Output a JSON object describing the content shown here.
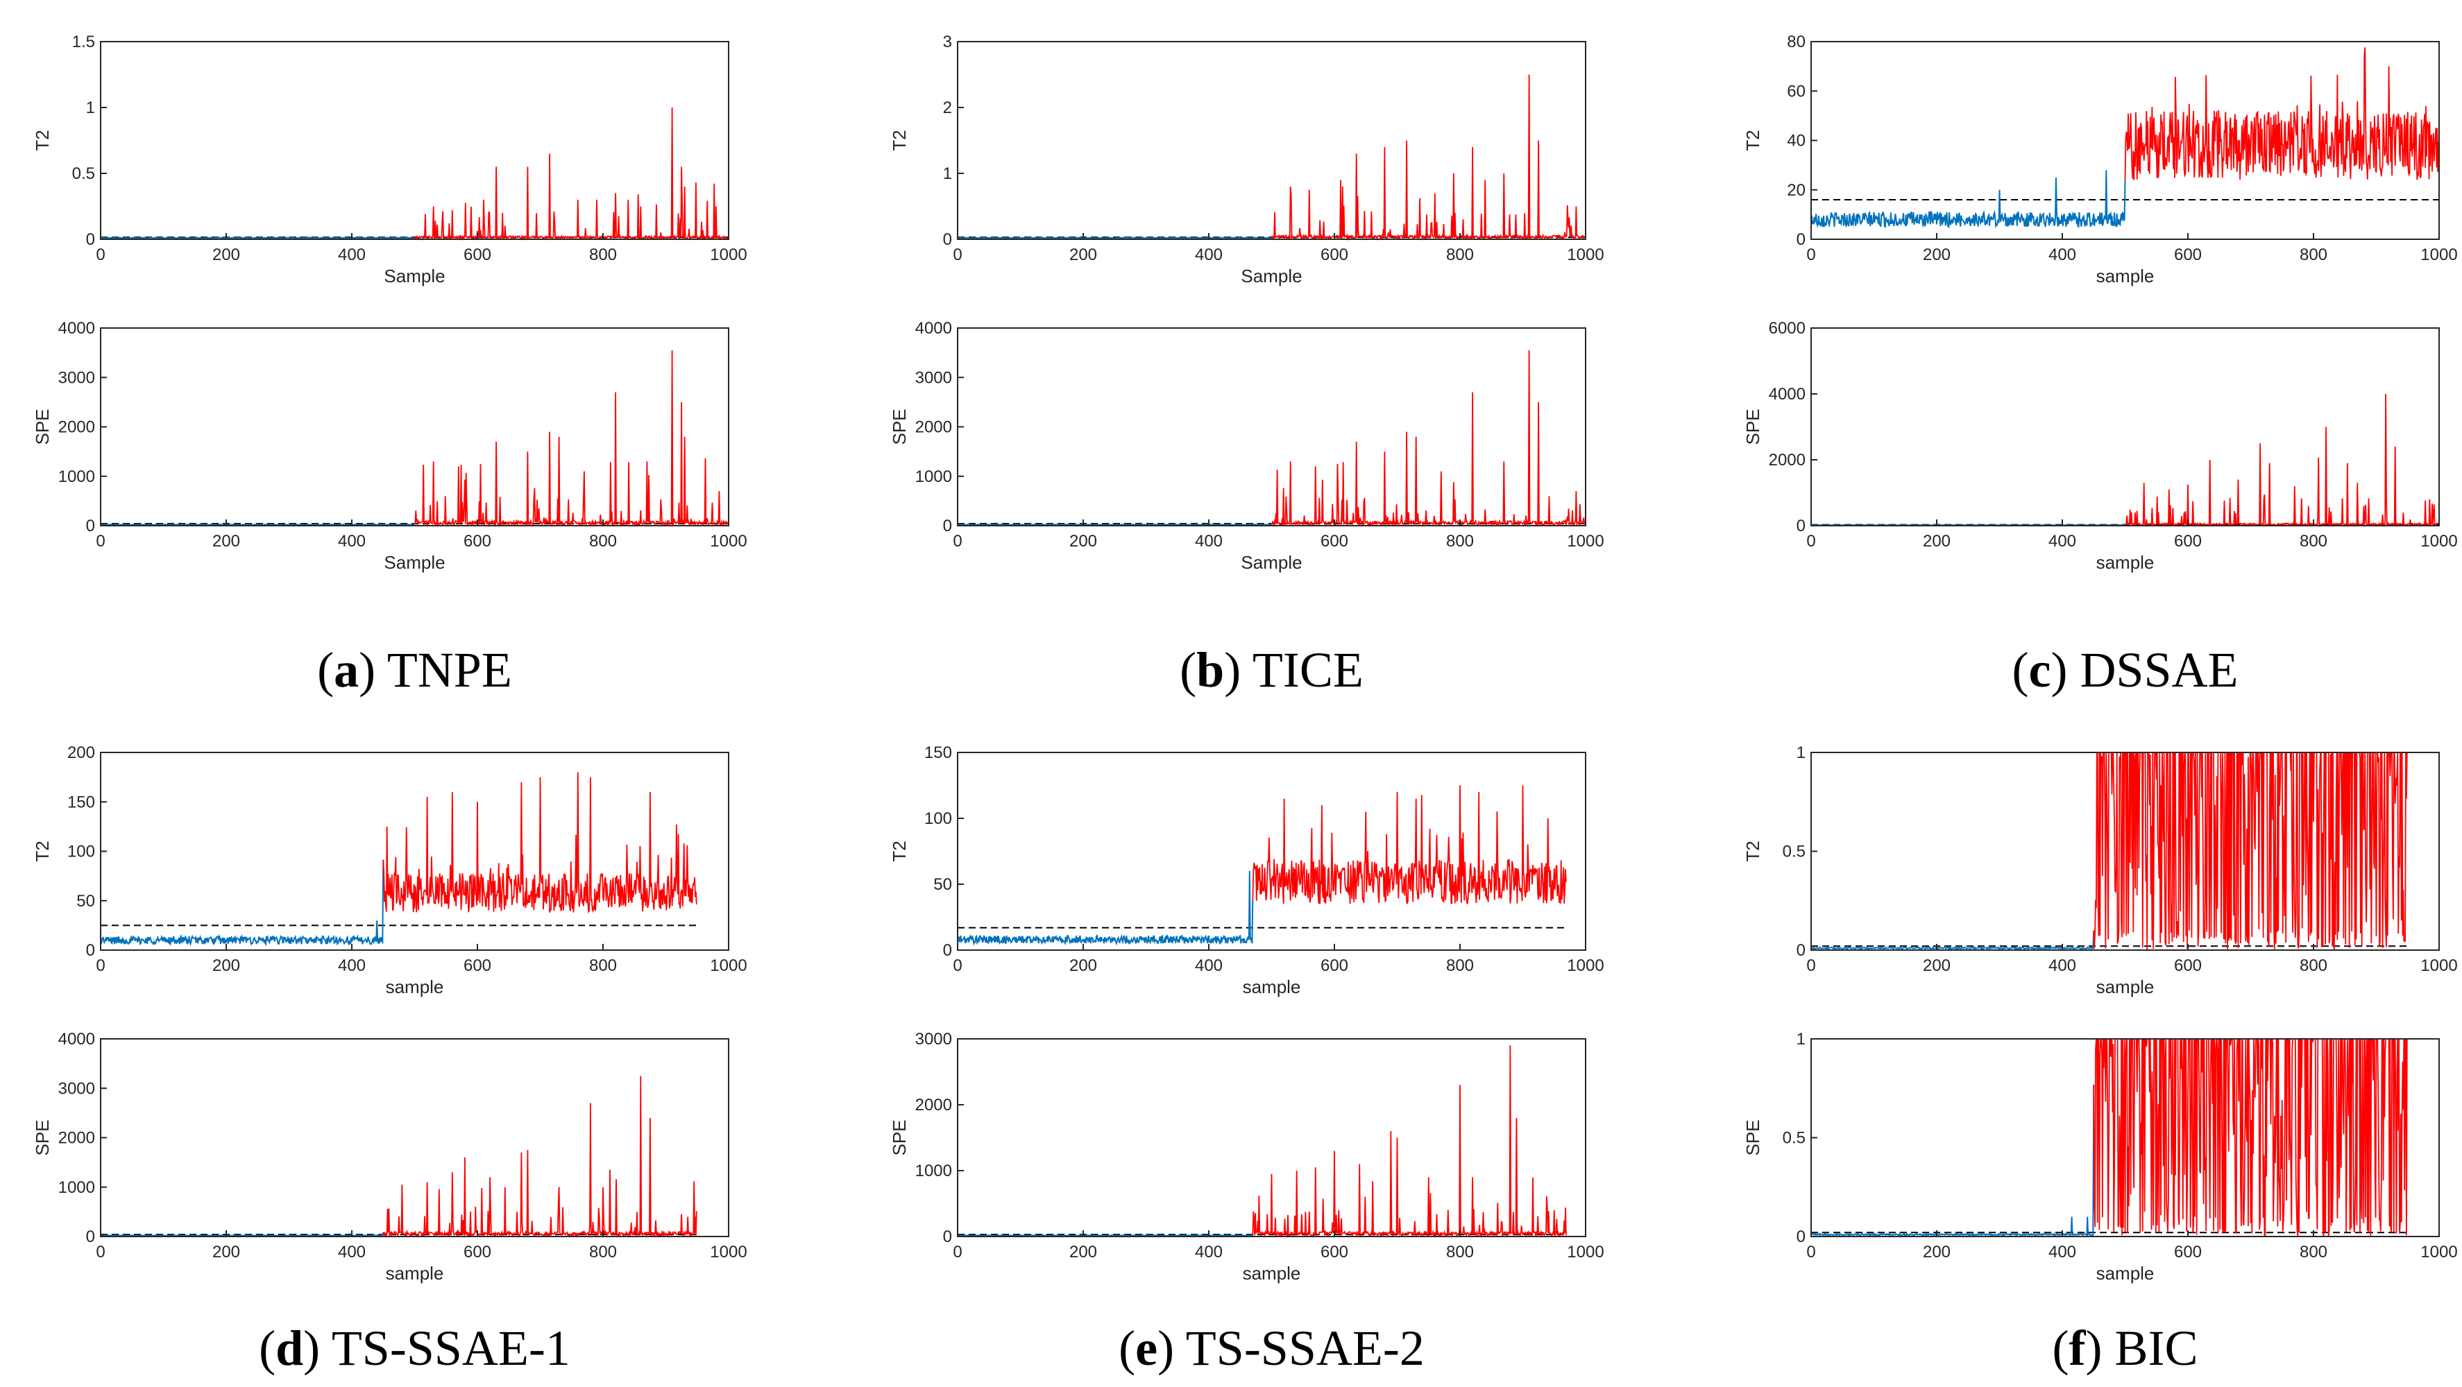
{
  "figure": {
    "colors": {
      "normal": "#0072BD",
      "fault": "#FF0000",
      "threshold": "#000000",
      "axis": "#262626"
    }
  },
  "chart_data": [
    {
      "type": "line",
      "panel": "a",
      "caption": {
        "letter": "a",
        "label": "TNPE"
      },
      "subplots": [
        {
          "ylabel": "T2",
          "xlabel": "Sample",
          "xlim": [
            0,
            1000
          ],
          "ylim": [
            0,
            1.5
          ],
          "yticks": [
            "0",
            "0.5",
            "1",
            "1.5"
          ],
          "xticks": [
            "0",
            "200",
            "400",
            "600",
            "800",
            "1000"
          ],
          "n": 1000,
          "change": 500,
          "normal_level": 0.01,
          "normal_noise": 0.003,
          "threshold": 0.015,
          "fault_base": 0.02,
          "fault_style": "spiky",
          "spikes": [
            [
              530,
              0.25
            ],
            [
              560,
              0.22
            ],
            [
              610,
              0.3
            ],
            [
              630,
              0.55
            ],
            [
              680,
              0.55
            ],
            [
              715,
              0.65
            ],
            [
              760,
              0.3
            ],
            [
              790,
              0.3
            ],
            [
              820,
              0.35
            ],
            [
              840,
              0.3
            ],
            [
              860,
              0.25
            ],
            [
              910,
              1.0
            ],
            [
              925,
              0.55
            ],
            [
              930,
              0.4
            ],
            [
              980,
              0.25
            ]
          ]
        },
        {
          "ylabel": "SPE",
          "xlabel": "Sample",
          "xlim": [
            0,
            1000
          ],
          "ylim": [
            0,
            4000
          ],
          "yticks": [
            "0",
            "1000",
            "2000",
            "3000",
            "4000"
          ],
          "xticks": [
            "0",
            "200",
            "400",
            "600",
            "800",
            "1000"
          ],
          "n": 1000,
          "change": 500,
          "normal_level": 20,
          "normal_noise": 5,
          "threshold": 40,
          "fault_base": 80,
          "fault_style": "spiky",
          "spikes": [
            [
              530,
              1300
            ],
            [
              570,
              1200
            ],
            [
              605,
              1250
            ],
            [
              630,
              1700
            ],
            [
              680,
              1500
            ],
            [
              715,
              1900
            ],
            [
              730,
              1800
            ],
            [
              770,
              1100
            ],
            [
              820,
              2700
            ],
            [
              870,
              1300
            ],
            [
              910,
              3550
            ],
            [
              925,
              2500
            ],
            [
              930,
              1800
            ],
            [
              985,
              700
            ]
          ]
        }
      ]
    },
    {
      "type": "line",
      "panel": "b",
      "caption": {
        "letter": "b",
        "label": "TICE"
      },
      "subplots": [
        {
          "ylabel": "T2",
          "xlabel": "Sample",
          "xlim": [
            0,
            1000
          ],
          "ylim": [
            0,
            3
          ],
          "yticks": [
            "0",
            "1",
            "2",
            "3"
          ],
          "xticks": [
            "0",
            "200",
            "400",
            "600",
            "800",
            "1000"
          ],
          "n": 1000,
          "change": 500,
          "normal_level": 0.02,
          "normal_noise": 0.005,
          "threshold": 0.03,
          "fault_base": 0.05,
          "fault_style": "spiky",
          "spikes": [
            [
              530,
              0.8
            ],
            [
              560,
              0.75
            ],
            [
              610,
              0.9
            ],
            [
              635,
              1.3
            ],
            [
              680,
              1.4
            ],
            [
              715,
              1.5
            ],
            [
              760,
              0.7
            ],
            [
              790,
              1.0
            ],
            [
              820,
              1.4
            ],
            [
              840,
              0.9
            ],
            [
              870,
              1.0
            ],
            [
              910,
              2.5
            ],
            [
              925,
              1.5
            ],
            [
              985,
              0.5
            ]
          ]
        },
        {
          "ylabel": "SPE",
          "xlabel": "Sample",
          "xlim": [
            0,
            1000
          ],
          "ylim": [
            0,
            4000
          ],
          "yticks": [
            "0",
            "1000",
            "2000",
            "3000",
            "4000"
          ],
          "xticks": [
            "0",
            "200",
            "400",
            "600",
            "800",
            "1000"
          ],
          "n": 1000,
          "change": 500,
          "normal_level": 20,
          "normal_noise": 5,
          "threshold": 40,
          "fault_base": 80,
          "fault_style": "spiky",
          "spikes": [
            [
              530,
              1300
            ],
            [
              570,
              1200
            ],
            [
              605,
              1250
            ],
            [
              635,
              1700
            ],
            [
              680,
              1500
            ],
            [
              715,
              1900
            ],
            [
              730,
              1800
            ],
            [
              770,
              1100
            ],
            [
              820,
              2700
            ],
            [
              870,
              1300
            ],
            [
              910,
              3550
            ],
            [
              925,
              2500
            ],
            [
              985,
              700
            ]
          ]
        }
      ]
    },
    {
      "type": "line",
      "panel": "c",
      "caption": {
        "letter": "c",
        "label": "DSSAE"
      },
      "subplots": [
        {
          "ylabel": "T2",
          "xlabel": "sample",
          "xlim": [
            0,
            1000
          ],
          "ylim": [
            0,
            80
          ],
          "yticks": [
            "0",
            "20",
            "40",
            "60",
            "80"
          ],
          "xticks": [
            "0",
            "200",
            "400",
            "600",
            "800",
            "1000"
          ],
          "n": 1000,
          "change": 500,
          "normal_level": 8,
          "normal_noise": 3,
          "threshold": 16,
          "fault_base": 38,
          "fault_style": "dense",
          "fault_noise": 14,
          "spikes": [
            [
              300,
              20
            ],
            [
              390,
              25
            ],
            [
              470,
              28
            ],
            [
              920,
              70
            ]
          ]
        },
        {
          "ylabel": "SPE",
          "xlabel": "sample",
          "xlim": [
            0,
            1000
          ],
          "ylim": [
            0,
            6000
          ],
          "yticks": [
            "0",
            "2000",
            "4000",
            "6000"
          ],
          "xticks": [
            "0",
            "200",
            "400",
            "600",
            "800",
            "1000"
          ],
          "n": 1000,
          "change": 500,
          "normal_level": 15,
          "normal_noise": 5,
          "threshold": 30,
          "fault_base": 60,
          "fault_style": "spiky",
          "spikes": [
            [
              530,
              1300
            ],
            [
              570,
              1100
            ],
            [
              600,
              1250
            ],
            [
              635,
              2000
            ],
            [
              680,
              1400
            ],
            [
              715,
              2500
            ],
            [
              730,
              1900
            ],
            [
              770,
              1200
            ],
            [
              820,
              3000
            ],
            [
              870,
              1300
            ],
            [
              915,
              4000
            ],
            [
              930,
              2400
            ],
            [
              985,
              800
            ]
          ]
        }
      ]
    },
    {
      "type": "line",
      "panel": "d",
      "caption": {
        "letter": "d",
        "label": "TS-SSAE-1"
      },
      "subplots": [
        {
          "ylabel": "T2",
          "xlabel": "sample",
          "xlim": [
            0,
            1000
          ],
          "ylim": [
            0,
            200
          ],
          "yticks": [
            "0",
            "50",
            "100",
            "150",
            "200"
          ],
          "xticks": [
            "0",
            "200",
            "400",
            "600",
            "800",
            "1000"
          ],
          "n": 950,
          "change": 450,
          "normal_level": 10,
          "normal_noise": 4,
          "threshold": 25,
          "fault_base": 58,
          "fault_style": "dense",
          "fault_noise": 20,
          "spikes": [
            [
              440,
              30
            ],
            [
              520,
              155
            ],
            [
              560,
              160
            ],
            [
              600,
              150
            ],
            [
              670,
              170
            ],
            [
              700,
              175
            ],
            [
              760,
              180
            ],
            [
              780,
              175
            ],
            [
              875,
              160
            ]
          ]
        },
        {
          "ylabel": "SPE",
          "xlabel": "sample",
          "xlim": [
            0,
            1000
          ],
          "ylim": [
            0,
            4000
          ],
          "yticks": [
            "0",
            "1000",
            "2000",
            "3000",
            "4000"
          ],
          "xticks": [
            "0",
            "200",
            "400",
            "600",
            "800",
            "1000"
          ],
          "n": 950,
          "change": 450,
          "normal_level": 20,
          "normal_noise": 5,
          "threshold": 40,
          "fault_base": 80,
          "fault_style": "spiky",
          "spikes": [
            [
              480,
              1050
            ],
            [
              520,
              1100
            ],
            [
              560,
              1300
            ],
            [
              580,
              1600
            ],
            [
              620,
              1200
            ],
            [
              670,
              1700
            ],
            [
              680,
              1750
            ],
            [
              730,
              1000
            ],
            [
              780,
              2700
            ],
            [
              800,
              1000
            ],
            [
              860,
              3250
            ],
            [
              875,
              2400
            ],
            [
              935,
              400
            ]
          ]
        }
      ]
    },
    {
      "type": "line",
      "panel": "e",
      "caption": {
        "letter": "e",
        "label": "TS-SSAE-2"
      },
      "subplots": [
        {
          "ylabel": "T2",
          "xlabel": "sample",
          "xlim": [
            0,
            1000
          ],
          "ylim": [
            0,
            150
          ],
          "yticks": [
            "0",
            "50",
            "100",
            "150"
          ],
          "xticks": [
            "0",
            "200",
            "400",
            "600",
            "800",
            "1000"
          ],
          "n": 970,
          "change": 470,
          "normal_level": 8,
          "normal_noise": 3,
          "threshold": 17,
          "fault_base": 52,
          "fault_style": "dense",
          "fault_noise": 17,
          "spikes": [
            [
              465,
              60
            ],
            [
              520,
              115
            ],
            [
              580,
              110
            ],
            [
              650,
              105
            ],
            [
              700,
              120
            ],
            [
              730,
              115
            ],
            [
              800,
              125
            ],
            [
              830,
              120
            ],
            [
              900,
              125
            ],
            [
              940,
              100
            ]
          ]
        },
        {
          "ylabel": "SPE",
          "xlabel": "sample",
          "xlim": [
            0,
            1000
          ],
          "ylim": [
            0,
            3000
          ],
          "yticks": [
            "0",
            "1000",
            "2000",
            "3000"
          ],
          "xticks": [
            "0",
            "200",
            "400",
            "600",
            "800",
            "1000"
          ],
          "n": 970,
          "change": 470,
          "normal_level": 15,
          "normal_noise": 5,
          "threshold": 30,
          "fault_base": 60,
          "fault_style": "spiky",
          "spikes": [
            [
              500,
              950
            ],
            [
              540,
              1000
            ],
            [
              570,
              1050
            ],
            [
              600,
              1300
            ],
            [
              640,
              1100
            ],
            [
              690,
              1600
            ],
            [
              700,
              1500
            ],
            [
              750,
              900
            ],
            [
              800,
              2300
            ],
            [
              820,
              900
            ],
            [
              880,
              2900
            ],
            [
              890,
              1800
            ],
            [
              950,
              400
            ]
          ]
        }
      ]
    },
    {
      "type": "line",
      "panel": "f",
      "caption": {
        "letter": "f",
        "label": "BIC"
      },
      "subplots": [
        {
          "ylabel": "T2",
          "xlabel": "sample",
          "xlim": [
            0,
            1000
          ],
          "ylim": [
            0,
            1
          ],
          "yticks": [
            "0",
            "0.5",
            "1"
          ],
          "xticks": [
            "0",
            "200",
            "400",
            "600",
            "800",
            "1000"
          ],
          "n": 950,
          "change": 450,
          "normal_level": 0.01,
          "normal_noise": 0.004,
          "threshold": 0.02,
          "fault_base": 0.7,
          "fault_style": "saturated",
          "fault_noise": 0.35,
          "spikes": [
            [
              940,
              0.15
            ]
          ]
        },
        {
          "ylabel": "SPE",
          "xlabel": "sample",
          "xlim": [
            0,
            1000
          ],
          "ylim": [
            0,
            1
          ],
          "yticks": [
            "0",
            "0.5",
            "1"
          ],
          "xticks": [
            "0",
            "200",
            "400",
            "600",
            "800",
            "1000"
          ],
          "n": 950,
          "change": 450,
          "normal_level": 0.01,
          "normal_noise": 0.004,
          "threshold": 0.02,
          "fault_base": 0.75,
          "fault_style": "saturated",
          "fault_noise": 0.35,
          "spikes": [
            [
              415,
              0.1
            ],
            [
              440,
              0.1
            ]
          ]
        }
      ]
    }
  ]
}
